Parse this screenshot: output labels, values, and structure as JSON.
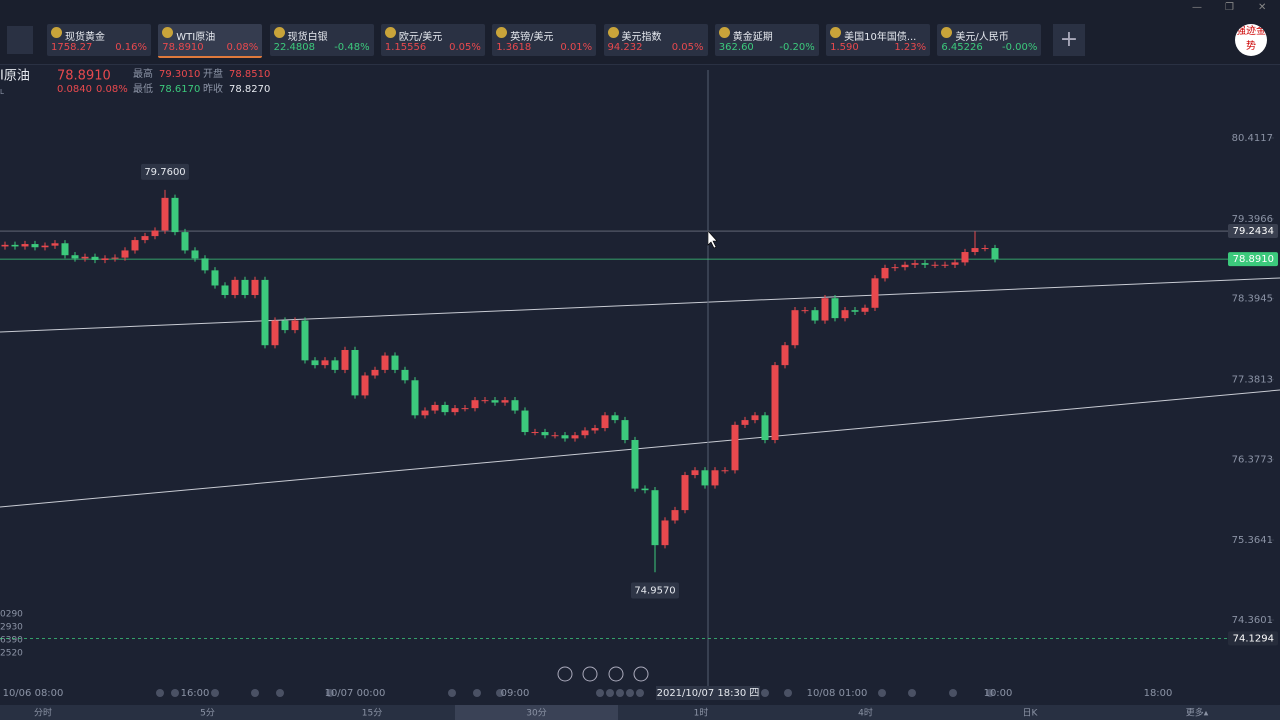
{
  "window_controls": [
    "—",
    "❐",
    "✕"
  ],
  "tickers": [
    {
      "name": "现货黄金",
      "price": "1758.27",
      "change": "0.16%",
      "color": "#e8494e"
    },
    {
      "name": "WTI原油",
      "price": "78.8910",
      "change": "0.08%",
      "color": "#e8494e"
    },
    {
      "name": "现货白银",
      "price": "22.4808",
      "change": "-0.48%",
      "color": "#3cc97c"
    },
    {
      "name": "欧元/美元",
      "price": "1.15556",
      "change": "0.05%",
      "color": "#e8494e"
    },
    {
      "name": "英镑/美元",
      "price": "1.3618",
      "change": "0.01%",
      "color": "#e8494e"
    },
    {
      "name": "美元指数",
      "price": "94.232",
      "change": "0.05%",
      "color": "#e8494e"
    },
    {
      "name": "黄金延期",
      "price": "362.60",
      "change": "-0.20%",
      "color": "#3cc97c"
    },
    {
      "name": "美国10年国债...",
      "price": "1.590",
      "change": "1.23%",
      "color": "#e8494e"
    },
    {
      "name": "美元/人民币",
      "price": "6.45226",
      "change": "-0.00%",
      "color": "#3cc97c"
    }
  ],
  "logo": "强迹金势",
  "header": {
    "name": "I原油",
    "price": "78.8910",
    "change": "0.0840",
    "change_pct": "0.08%",
    "sub": "L",
    "high_label": "最高",
    "high": "79.3010",
    "open_label": "开盘",
    "open": "78.8510",
    "low_label": "最低",
    "low": "78.6170",
    "prev_label": "昨收",
    "prev": "78.8270"
  },
  "side_labels": [
    "0290",
    "2930",
    "6390",
    "2520"
  ],
  "chart_data": {
    "type": "candlestick",
    "ylim": [
      73.607,
      81.328
    ],
    "yticks": [
      80.4117,
      79.3966,
      78.3945,
      77.3813,
      76.3773,
      75.3641,
      74.3601
    ],
    "up_color": "#e8494e",
    "down_color": "#3cc97c",
    "open": [
      79.05,
      79.07,
      79.05,
      79.08,
      79.04,
      79.06,
      79.09,
      78.94,
      78.9,
      78.92,
      78.88,
      78.9,
      78.91,
      79.0,
      79.13,
      79.18,
      79.25,
      79.66,
      79.23,
      79.0,
      78.9,
      78.75,
      78.56,
      78.44,
      78.63,
      78.44,
      78.63,
      77.81,
      78.12,
      78.0,
      78.12,
      77.62,
      77.56,
      77.62,
      77.5,
      77.75,
      77.18,
      77.43,
      77.5,
      77.68,
      77.5,
      77.37,
      76.93,
      76.99,
      77.06,
      76.97,
      77.02,
      77.02,
      77.12,
      77.12,
      77.09,
      77.12,
      76.99,
      76.72,
      76.72,
      76.68,
      76.68,
      76.64,
      76.68,
      76.74,
      76.77,
      76.93,
      76.87,
      76.62,
      76.01,
      75.99,
      75.3,
      75.61,
      75.74,
      76.18,
      76.24,
      76.05,
      76.24,
      76.24,
      76.81,
      76.87,
      76.93,
      76.62,
      77.56,
      77.81,
      78.25,
      78.25,
      78.12,
      78.4,
      78.15,
      78.25,
      78.23,
      78.28,
      78.65,
      78.78,
      78.79,
      78.82,
      78.84,
      78.82,
      78.82,
      78.82,
      78.85,
      78.98,
      79.03,
      79.03
    ],
    "close": [
      79.07,
      79.05,
      79.08,
      79.04,
      79.06,
      79.09,
      78.94,
      78.9,
      78.92,
      78.88,
      78.9,
      78.91,
      79.0,
      79.13,
      79.18,
      79.25,
      79.66,
      79.23,
      79.0,
      78.9,
      78.75,
      78.56,
      78.44,
      78.63,
      78.44,
      78.63,
      77.81,
      78.12,
      78.0,
      78.12,
      77.62,
      77.56,
      77.62,
      77.5,
      77.75,
      77.18,
      77.43,
      77.5,
      77.68,
      77.5,
      77.37,
      76.93,
      76.99,
      77.06,
      76.97,
      77.02,
      77.02,
      77.12,
      77.12,
      77.09,
      77.12,
      76.99,
      76.72,
      76.72,
      76.68,
      76.68,
      76.64,
      76.68,
      76.74,
      76.77,
      76.93,
      76.87,
      76.62,
      76.01,
      75.99,
      75.3,
      75.61,
      75.74,
      76.18,
      76.24,
      76.05,
      76.24,
      76.24,
      76.81,
      76.87,
      76.93,
      76.62,
      77.56,
      77.81,
      78.25,
      78.25,
      78.12,
      78.4,
      78.15,
      78.25,
      78.23,
      78.28,
      78.65,
      78.78,
      78.79,
      78.82,
      78.84,
      78.82,
      78.82,
      78.82,
      78.85,
      78.98,
      79.03,
      79.03,
      78.89
    ],
    "high": [
      79.11,
      79.11,
      79.12,
      79.12,
      79.1,
      79.13,
      79.13,
      78.98,
      78.96,
      78.96,
      78.94,
      78.95,
      79.04,
      79.17,
      79.22,
      79.29,
      79.76,
      79.7,
      79.27,
      79.04,
      78.94,
      78.79,
      78.6,
      78.67,
      78.67,
      78.67,
      78.67,
      78.16,
      78.16,
      78.16,
      78.16,
      77.66,
      77.66,
      77.66,
      77.79,
      77.79,
      77.47,
      77.54,
      77.72,
      77.72,
      77.54,
      77.41,
      77.03,
      77.1,
      77.1,
      77.06,
      77.06,
      77.16,
      77.16,
      77.16,
      77.16,
      77.16,
      77.03,
      76.76,
      76.76,
      76.72,
      76.72,
      76.72,
      76.78,
      76.81,
      76.97,
      76.97,
      76.91,
      76.66,
      76.05,
      76.03,
      75.65,
      75.78,
      76.22,
      76.28,
      76.28,
      76.28,
      76.28,
      76.85,
      76.91,
      76.97,
      76.97,
      77.6,
      77.85,
      78.29,
      78.29,
      78.29,
      78.44,
      78.44,
      78.29,
      78.29,
      78.32,
      78.69,
      78.82,
      78.83,
      78.86,
      78.88,
      78.88,
      78.86,
      78.86,
      78.89,
      79.02,
      79.24,
      79.07,
      79.07
    ],
    "low": [
      79.01,
      79.01,
      79.01,
      79.0,
      79.0,
      79.02,
      78.9,
      78.86,
      78.86,
      78.84,
      78.84,
      78.86,
      78.87,
      78.96,
      79.09,
      79.14,
      79.21,
      79.19,
      78.96,
      78.86,
      78.71,
      78.52,
      78.4,
      78.4,
      78.4,
      78.4,
      77.77,
      77.77,
      77.96,
      77.96,
      77.58,
      77.52,
      77.52,
      77.46,
      77.46,
      77.14,
      77.14,
      77.39,
      77.46,
      77.46,
      77.33,
      76.89,
      76.89,
      76.95,
      76.93,
      76.93,
      76.98,
      76.98,
      77.08,
      77.05,
      77.05,
      76.95,
      76.68,
      76.68,
      76.64,
      76.64,
      76.6,
      76.6,
      76.64,
      76.7,
      76.73,
      76.83,
      76.58,
      75.97,
      75.95,
      74.96,
      75.26,
      75.57,
      75.7,
      76.14,
      76.01,
      76.01,
      76.2,
      76.2,
      76.77,
      76.83,
      76.58,
      76.58,
      77.52,
      77.77,
      78.21,
      78.08,
      78.08,
      78.11,
      78.11,
      78.19,
      78.19,
      78.24,
      78.61,
      78.74,
      78.75,
      78.78,
      78.78,
      78.78,
      78.78,
      78.78,
      78.81,
      78.94,
      78.99,
      78.85
    ],
    "price_lines": [
      {
        "value": 79.2434,
        "label": "79.2434"
      },
      {
        "value": 78.891,
        "label": "78.8910"
      },
      {
        "value": 74.1294,
        "label": "74.1294"
      }
    ],
    "annotations": [
      {
        "value": 79.76,
        "label": "79.7600"
      },
      {
        "value": 74.957,
        "label": "74.9570"
      }
    ],
    "crosshair_time": "2021/10/07 18:30 四",
    "time_labels": [
      "10/06 08:00",
      "16:00",
      "10/07 00:00",
      "09:00",
      "10/08 01:00",
      "10:00",
      "18:00"
    ]
  },
  "tabs": [
    "分时",
    "5分",
    "15分",
    "30分",
    "1时",
    "4时",
    "日K",
    "更多▴"
  ]
}
